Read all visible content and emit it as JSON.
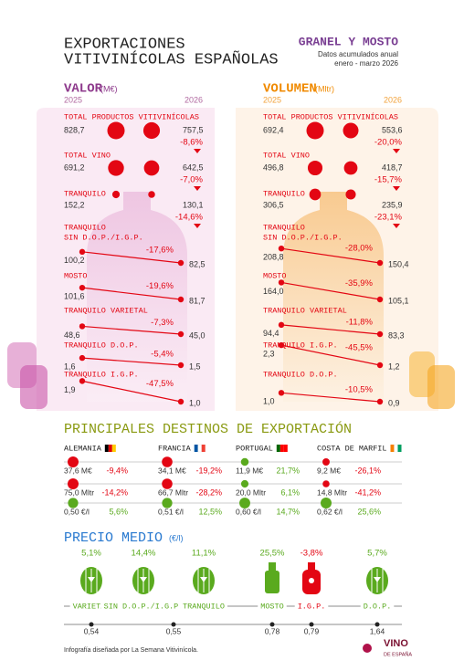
{
  "header": {
    "title_line1": "EXPORTACIONES",
    "title_line2": "VITIVINÍCOLAS ESPAÑOLAS",
    "category": "GRANEL Y MOSTO",
    "subtitle1": "Datos acumulados anual",
    "subtitle2": "enero - marzo 2026"
  },
  "valor": {
    "title": "VALOR",
    "unit": "(M€)",
    "year_left": "2025",
    "year_right": "2026",
    "rows": [
      {
        "label": [
          "TOTAL PRODUCTOS VITIVINÍCOLAS"
        ],
        "left": {
          "value": 828.7,
          "label": "828,7"
        },
        "right": {
          "value": 757.5,
          "label": "757,5"
        },
        "change": {
          "value": -8.6,
          "label": "-8,6%"
        }
      },
      {
        "label": [
          "TOTAL VINO"
        ],
        "left": {
          "value": 691.2,
          "label": "691,2"
        },
        "right": {
          "value": 642.5,
          "label": "642,5"
        },
        "change": {
          "value": -7.0,
          "label": "-7,0%"
        }
      },
      {
        "label": [
          "TRANQUILO"
        ],
        "left": {
          "value": 152.2,
          "label": "152,2"
        },
        "right": {
          "value": 130.1,
          "label": "130,1"
        },
        "change": {
          "value": -14.6,
          "label": "-14,6%"
        }
      },
      {
        "label": [
          "TRANQUILO",
          "SIN D.O.P./I.G.P."
        ],
        "left": {
          "value": 100.2,
          "label": "100,2"
        },
        "right": {
          "value": 82.5,
          "label": "82,5"
        },
        "change": {
          "value": -17.6,
          "label": "-17,6%"
        }
      },
      {
        "label": [
          "MOSTO"
        ],
        "left": {
          "value": 101.6,
          "label": "101,6"
        },
        "right": {
          "value": 81.7,
          "label": "81,7"
        },
        "change": {
          "value": -19.6,
          "label": "-19,6%"
        }
      },
      {
        "label": [
          "TRANQUILO VARIETAL"
        ],
        "left": {
          "value": 48.6,
          "label": "48,6"
        },
        "right": {
          "value": 45.0,
          "label": "45,0"
        },
        "change": {
          "value": -7.3,
          "label": "-7,3%"
        }
      },
      {
        "label": [
          "TRANQUILO D.O.P."
        ],
        "left": {
          "value": 1.6,
          "label": "1,6"
        },
        "right": {
          "value": 1.5,
          "label": "1,5"
        },
        "change": {
          "value": -5.4,
          "label": "-5,4%"
        }
      },
      {
        "label": [
          "TRANQUILO I.G.P."
        ],
        "left": {
          "value": 1.9,
          "label": "1,9"
        },
        "right": {
          "value": 1.0,
          "label": "1,0"
        },
        "change": {
          "value": -47.5,
          "label": "-47,5%"
        }
      }
    ]
  },
  "volumen": {
    "title": "VOLUMEN",
    "unit": "(Mltr)",
    "year_left": "2025",
    "year_right": "2026",
    "rows": [
      {
        "label": [
          "TOTAL PRODUCTOS VITIVINÍCOLAS"
        ],
        "left": {
          "value": 692.4,
          "label": "692,4"
        },
        "right": {
          "value": 553.6,
          "label": "553,6"
        },
        "change": {
          "value": -20.0,
          "label": "-20,0%"
        }
      },
      {
        "label": [
          "TOTAL VINO"
        ],
        "left": {
          "value": 496.8,
          "label": "496,8"
        },
        "right": {
          "value": 418.7,
          "label": "418,7"
        },
        "change": {
          "value": -15.7,
          "label": "-15,7%"
        }
      },
      {
        "label": [
          "TRANQUILO"
        ],
        "left": {
          "value": 306.5,
          "label": "306,5"
        },
        "right": {
          "value": 235.9,
          "label": "235,9"
        },
        "change": {
          "value": -23.1,
          "label": "-23,1%"
        }
      },
      {
        "label": [
          "TRANQUILO",
          "SIN D.O.P./I.G.P."
        ],
        "left": {
          "value": 208.8,
          "label": "208,8"
        },
        "right": {
          "value": 150.4,
          "label": "150,4"
        },
        "change": {
          "value": -28.0,
          "label": "-28,0%"
        }
      },
      {
        "label": [
          "MOSTO"
        ],
        "left": {
          "value": 164.0,
          "label": "164,0"
        },
        "right": {
          "value": 105.1,
          "label": "105,1"
        },
        "change": {
          "value": -35.9,
          "label": "-35,9%"
        }
      },
      {
        "label": [
          "TRANQUILO VARIETAL"
        ],
        "left": {
          "value": 94.4,
          "label": "94,4"
        },
        "right": {
          "value": 83.3,
          "label": "83,3"
        },
        "change": {
          "value": -11.8,
          "label": "-11,8%"
        }
      },
      {
        "label": [
          "TRANQUILO I.G.P."
        ],
        "left": {
          "value": 2.3,
          "label": "2,3"
        },
        "right": {
          "value": 1.2,
          "label": "1,2"
        },
        "change": {
          "value": -45.5,
          "label": "-45,5%"
        }
      },
      {
        "label": [
          "TRANQUILO D.O.P."
        ],
        "left": {
          "value": 1.0,
          "label": "1,0"
        },
        "right": {
          "value": 0.9,
          "label": "0,9"
        },
        "change": {
          "value": -10.5,
          "label": "-10,5%"
        }
      }
    ]
  },
  "destinos": {
    "title": "PRINCIPALES DESTINOS DE EXPORTACIÓN",
    "countries": [
      {
        "name": "ALEMANIA",
        "metrics": [
          {
            "amount": {
              "value": 37.6,
              "label": "37,6 M€"
            },
            "change": {
              "value": -9.4,
              "label": "-9,4%"
            }
          },
          {
            "amount": {
              "value": 75.0,
              "label": "75,0 Mltr"
            },
            "change": {
              "value": -14.2,
              "label": "-14,2%"
            }
          },
          {
            "amount": {
              "value": 0.5,
              "label": "0,50 €/l"
            },
            "change": {
              "value": 5.6,
              "label": "5,6%"
            }
          }
        ]
      },
      {
        "name": "FRANCIA",
        "metrics": [
          {
            "amount": {
              "value": 34.1,
              "label": "34,1 M€"
            },
            "change": {
              "value": -19.2,
              "label": "-19,2%"
            }
          },
          {
            "amount": {
              "value": 66.7,
              "label": "66,7 Mltr"
            },
            "change": {
              "value": -28.2,
              "label": "-28,2%"
            }
          },
          {
            "amount": {
              "value": 0.51,
              "label": "0,51 €/l"
            },
            "change": {
              "value": 12.5,
              "label": "12,5%"
            }
          }
        ]
      },
      {
        "name": "PORTUGAL",
        "metrics": [
          {
            "amount": {
              "value": 11.9,
              "label": "11,9 M€"
            },
            "change": {
              "value": 21.7,
              "label": "21,7%"
            }
          },
          {
            "amount": {
              "value": 20.0,
              "label": "20,0 Mltr"
            },
            "change": {
              "value": 6.1,
              "label": "6,1%"
            }
          },
          {
            "amount": {
              "value": 0.6,
              "label": "0,60 €/l"
            },
            "change": {
              "value": 14.7,
              "label": "14,7%"
            }
          }
        ]
      },
      {
        "name": "COSTA DE MARFIL",
        "metrics": [
          {
            "amount": {
              "value": 9.2,
              "label": "9,2 M€"
            },
            "change": {
              "value": -26.1,
              "label": "-26,1%"
            }
          },
          {
            "amount": {
              "value": 14.8,
              "label": "14,8 Mltr"
            },
            "change": {
              "value": -41.2,
              "label": "-41,2%"
            }
          },
          {
            "amount": {
              "value": 0.62,
              "label": "0,62 €/l"
            },
            "change": {
              "value": 25.6,
              "label": "25,6%"
            }
          }
        ]
      }
    ]
  },
  "precio": {
    "title": "PRECIO MEDIO",
    "unit": "(€/l)",
    "items": [
      {
        "name": "VARIETAL",
        "change": {
          "value": 5.1,
          "label": "5,1%"
        }
      },
      {
        "name": "SIN D.O.P./I.G.P.",
        "change": {
          "value": 14.4,
          "label": "14,4%"
        }
      },
      {
        "name": "TRANQUILO",
        "change": {
          "value": 11.1,
          "label": "11,1%"
        }
      },
      {
        "name": "MOSTO",
        "change": {
          "value": 25.5,
          "label": "25,5%"
        }
      },
      {
        "name": "I.G.P.",
        "change": {
          "value": -3.8,
          "label": "-3,8%"
        }
      },
      {
        "name": "D.O.P.",
        "change": {
          "value": 5.7,
          "label": "5,7%"
        }
      }
    ],
    "price_ticks": [
      {
        "value": 0.54,
        "label": "0,54"
      },
      {
        "value": 0.55,
        "label": "0,55"
      },
      {
        "value": 0.78,
        "label": "0,78"
      },
      {
        "value": 0.79,
        "label": "0,79"
      },
      {
        "value": 1.64,
        "label": "1,64"
      }
    ]
  },
  "footer": {
    "credit": "Infografía diseñada por La Semana Vitivinícola.",
    "logo_main": "VINO",
    "logo_sub": "DE ESPAÑA"
  }
}
